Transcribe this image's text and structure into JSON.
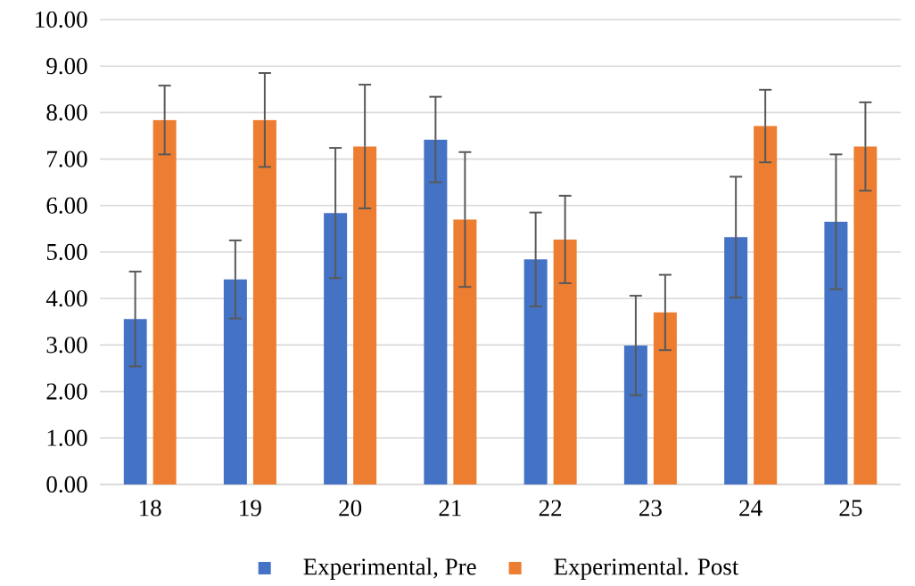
{
  "chart_data": {
    "type": "bar",
    "categories": [
      "18",
      "19",
      "20",
      "21",
      "22",
      "23",
      "24",
      "25"
    ],
    "series": [
      {
        "name": "Experimental, Pre",
        "color": "#4472c4",
        "values": [
          3.56,
          4.41,
          5.84,
          7.42,
          4.84,
          2.99,
          5.32,
          5.65
        ],
        "errors": [
          1.02,
          0.84,
          1.4,
          0.92,
          1.01,
          1.07,
          1.3,
          1.45
        ]
      },
      {
        "name": "Experimental. Post",
        "color": "#ed7d31",
        "values": [
          7.84,
          7.84,
          7.27,
          5.7,
          5.27,
          3.7,
          7.71,
          7.27
        ],
        "errors": [
          0.74,
          1.01,
          1.33,
          1.45,
          0.94,
          0.81,
          0.78,
          0.95
        ]
      }
    ],
    "ylim": [
      0,
      10
    ],
    "yticks": [
      {
        "value": 0,
        "label": "0.00"
      },
      {
        "value": 1,
        "label": "1.00"
      },
      {
        "value": 2,
        "label": "2.00"
      },
      {
        "value": 3,
        "label": "3.00"
      },
      {
        "value": 4,
        "label": "4.00"
      },
      {
        "value": 5,
        "label": "5.00"
      },
      {
        "value": 6,
        "label": "6.00"
      },
      {
        "value": 7,
        "label": "7.00"
      },
      {
        "value": 8,
        "label": "8.00"
      },
      {
        "value": 9,
        "label": "9.00"
      },
      {
        "value": 10,
        "label": "10.00"
      }
    ],
    "grid": "y",
    "legend": "bottom"
  }
}
